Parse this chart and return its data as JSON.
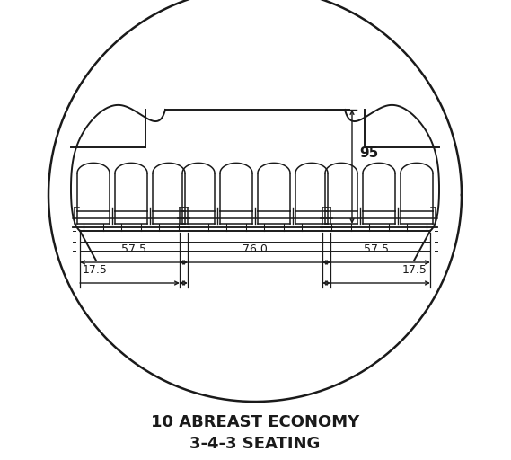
{
  "bg_color": "#ffffff",
  "line_color": "#1a1a1a",
  "title_line1": "10 ABREAST ECONOMY",
  "title_line2": "3-4-3 SEATING",
  "dim_95": "95",
  "dim_57_5_left": "57.5",
  "dim_76": "76.0",
  "dim_57_5_right": "57.5",
  "dim_17_5_left": "17.5",
  "dim_17_5_right": "17.5"
}
